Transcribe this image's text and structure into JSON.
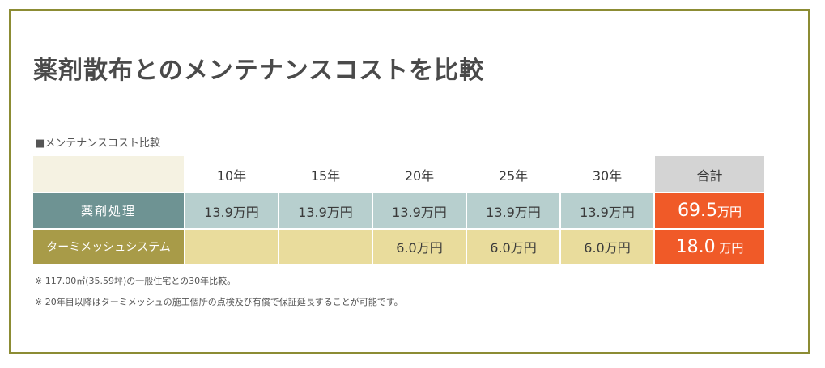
{
  "title": "薬剤散布とのメンテナンスコストを比較",
  "subtitle": "■メンテナンスコスト比較",
  "table": {
    "headers": [
      "",
      "10年",
      "15年",
      "20年",
      "25年",
      "30年",
      "合計"
    ],
    "rows": [
      {
        "label": "薬剤処理",
        "cells": [
          "13.9万円",
          "13.9万円",
          "13.9万円",
          "13.9万円",
          "13.9万円"
        ],
        "total_num": "69.5",
        "total_unit": "万円"
      },
      {
        "label": "ターミメッシュシステム",
        "cells": [
          "",
          "",
          "6.0万円",
          "6.0万円",
          "6.0万円"
        ],
        "total_num": "18.0",
        "total_unit": " 万円"
      }
    ]
  },
  "notes": [
    "※ 117.00㎡(35.59坪)の一般住宅との30年比較。",
    "※ 20年目以降はターミメッシュの施工個所の点検及び有償で保証延長することが可能です。"
  ],
  "colors": {
    "border": "#8c8c34",
    "row1_label": "#6e9393",
    "row1_cells": "#b7cfce",
    "row2_label": "#a89b48",
    "row2_cells": "#e9dc9c",
    "total": "#f05a28"
  }
}
